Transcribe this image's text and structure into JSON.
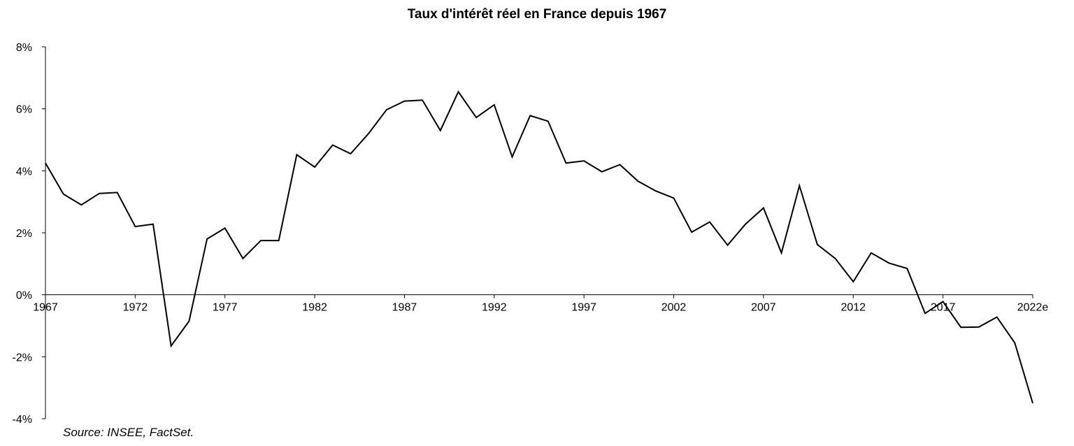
{
  "chart_data": {
    "type": "line",
    "title": "Taux d'intérêt réel en France depuis 1967",
    "source": "Source: INSEE, FactSet.",
    "xlabel": "",
    "ylabel": "",
    "ylim": [
      -4,
      8
    ],
    "yticks": [
      -4,
      -2,
      0,
      2,
      4,
      6,
      8
    ],
    "ytick_labels": [
      "-4%",
      "-2%",
      "0%",
      "2%",
      "4%",
      "6%",
      "8%"
    ],
    "xlim": [
      1967,
      2022
    ],
    "xtick_labels": [
      "1967",
      "1972",
      "1977",
      "1982",
      "1987",
      "1992",
      "1997",
      "2002",
      "2007",
      "2012",
      "2017",
      "2022e"
    ],
    "grid": false,
    "series": [
      {
        "color": "#000000",
        "x": [
          1967,
          1968,
          1969,
          1970,
          1971,
          1972,
          1973,
          1974,
          1975,
          1976,
          1977,
          1978,
          1979,
          1980,
          1981,
          1982,
          1983,
          1984,
          1985,
          1986,
          1987,
          1988,
          1989,
          1990,
          1991,
          1992,
          1993,
          1994,
          1995,
          1996,
          1997,
          1998,
          1999,
          2000,
          2001,
          2002,
          2003,
          2004,
          2005,
          2006,
          2007,
          2008,
          2009,
          2010,
          2011,
          2012,
          2013,
          2014,
          2015,
          2016,
          2017,
          2018,
          2019,
          2020,
          2021,
          2022
        ],
        "values": [
          4.25,
          3.25,
          2.9,
          3.27,
          3.3,
          2.2,
          2.28,
          -1.65,
          -0.85,
          1.8,
          2.15,
          1.17,
          1.75,
          1.75,
          4.52,
          4.12,
          4.83,
          4.55,
          5.2,
          5.97,
          6.25,
          6.28,
          5.3,
          6.55,
          5.72,
          6.13,
          4.45,
          5.78,
          5.6,
          4.25,
          4.32,
          3.97,
          4.2,
          3.67,
          3.35,
          3.12,
          2.02,
          2.35,
          1.6,
          2.28,
          2.8,
          1.35,
          3.52,
          1.62,
          1.17,
          0.42,
          1.35,
          1.02,
          0.85,
          -0.6,
          -0.22,
          -1.05,
          -1.04,
          -0.72,
          -1.55,
          -3.5
        ]
      }
    ]
  }
}
